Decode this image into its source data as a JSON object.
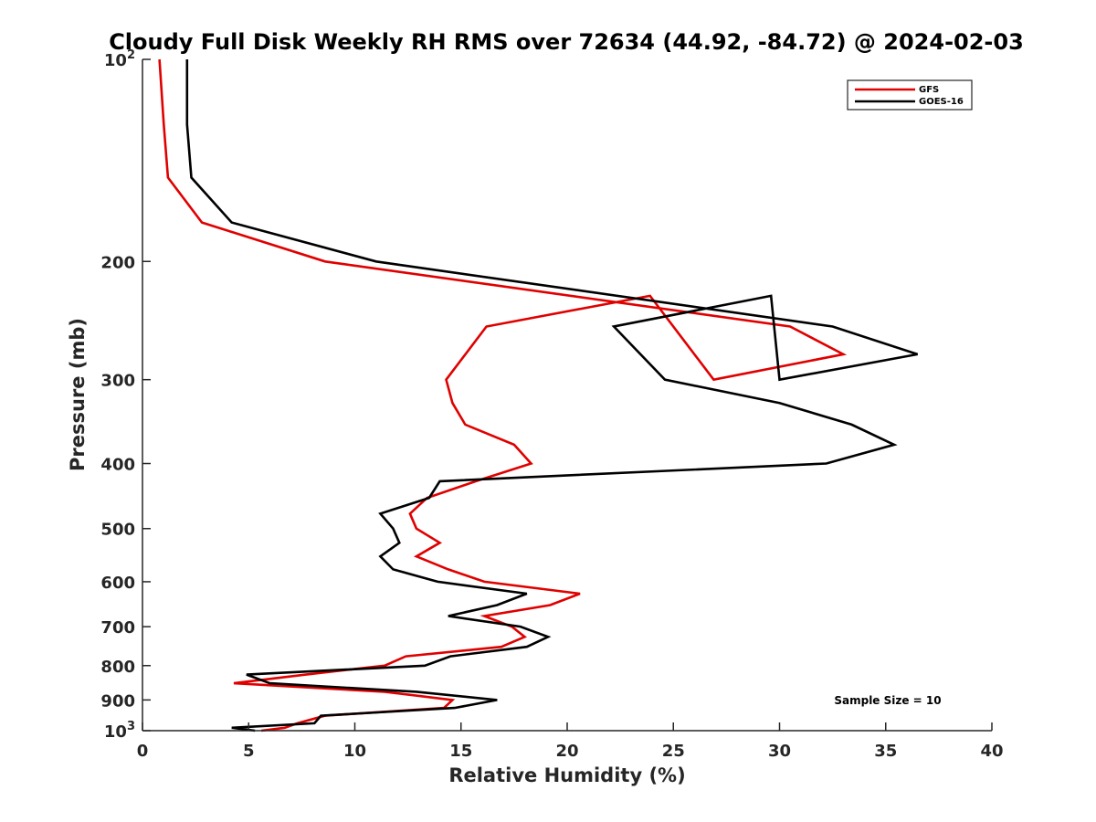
{
  "chart_data": {
    "type": "line",
    "title": "Cloudy Full Disk Weekly RH RMS over 72634 (44.92, -84.72) @ 2024-02-03",
    "xlabel": "Relative Humidity (%)",
    "ylabel": "Pressure (mb)",
    "xlim": [
      0,
      40
    ],
    "ylim": [
      100,
      1000
    ],
    "y_scale": "log",
    "y_reversed": true,
    "x_ticks": [
      {
        "value": 0,
        "label": "0"
      },
      {
        "value": 5,
        "label": "5"
      },
      {
        "value": 10,
        "label": "10"
      },
      {
        "value": 15,
        "label": "15"
      },
      {
        "value": 20,
        "label": "20"
      },
      {
        "value": 25,
        "label": "25"
      },
      {
        "value": 30,
        "label": "30"
      },
      {
        "value": 35,
        "label": "35"
      },
      {
        "value": 40,
        "label": "40"
      }
    ],
    "y_ticks": [
      {
        "value": 100,
        "label": "10",
        "sup": "2"
      },
      {
        "value": 200,
        "label": "200",
        "sup": ""
      },
      {
        "value": 300,
        "label": "300",
        "sup": ""
      },
      {
        "value": 400,
        "label": "400",
        "sup": ""
      },
      {
        "value": 500,
        "label": "500",
        "sup": ""
      },
      {
        "value": 600,
        "label": "600",
        "sup": ""
      },
      {
        "value": 700,
        "label": "700",
        "sup": ""
      },
      {
        "value": 800,
        "label": "800",
        "sup": ""
      },
      {
        "value": 900,
        "label": "900",
        "sup": ""
      },
      {
        "value": 1000,
        "label": "10",
        "sup": "3"
      }
    ],
    "grid": false,
    "legend_position": "top-right",
    "annotation": "Sample Size = 10",
    "series": [
      {
        "name": "GFS",
        "color": "#e00000",
        "points": [
          {
            "rh": 0.8,
            "p": 100
          },
          {
            "rh": 1.0,
            "p": 125
          },
          {
            "rh": 1.2,
            "p": 150
          },
          {
            "rh": 2.8,
            "p": 175
          },
          {
            "rh": 8.6,
            "p": 200
          },
          {
            "rh": 30.5,
            "p": 250
          },
          {
            "rh": 33.0,
            "p": 275
          },
          {
            "rh": 26.9,
            "p": 300
          },
          {
            "rh": 23.9,
            "p": 225
          },
          {
            "rh": 16.2,
            "p": 250
          },
          {
            "rh": 14.3,
            "p": 300
          },
          {
            "rh": 14.6,
            "p": 325
          },
          {
            "rh": 15.2,
            "p": 350
          },
          {
            "rh": 17.5,
            "p": 375
          },
          {
            "rh": 18.3,
            "p": 400
          },
          {
            "rh": 15.7,
            "p": 425
          },
          {
            "rh": 13.4,
            "p": 450
          },
          {
            "rh": 12.6,
            "p": 475
          },
          {
            "rh": 12.9,
            "p": 500
          },
          {
            "rh": 14.0,
            "p": 525
          },
          {
            "rh": 12.9,
            "p": 550
          },
          {
            "rh": 14.4,
            "p": 575
          },
          {
            "rh": 16.1,
            "p": 600
          },
          {
            "rh": 20.6,
            "p": 625
          },
          {
            "rh": 19.2,
            "p": 650
          },
          {
            "rh": 16.1,
            "p": 675
          },
          {
            "rh": 17.4,
            "p": 700
          },
          {
            "rh": 18.0,
            "p": 725
          },
          {
            "rh": 16.9,
            "p": 750
          },
          {
            "rh": 12.4,
            "p": 775
          },
          {
            "rh": 11.4,
            "p": 800
          },
          {
            "rh": 7.7,
            "p": 825
          },
          {
            "rh": 4.3,
            "p": 850
          },
          {
            "rh": 11.4,
            "p": 875
          },
          {
            "rh": 14.6,
            "p": 900
          },
          {
            "rh": 14.2,
            "p": 925
          },
          {
            "rh": 8.6,
            "p": 950
          },
          {
            "rh": 7.3,
            "p": 975
          },
          {
            "rh": 6.7,
            "p": 990
          },
          {
            "rh": 5.6,
            "p": 1000
          }
        ]
      },
      {
        "name": "GOES-16",
        "color": "#000000",
        "points": [
          {
            "rh": 2.1,
            "p": 100
          },
          {
            "rh": 2.1,
            "p": 125
          },
          {
            "rh": 2.3,
            "p": 150
          },
          {
            "rh": 4.2,
            "p": 175
          },
          {
            "rh": 11.0,
            "p": 200
          },
          {
            "rh": 32.5,
            "p": 250
          },
          {
            "rh": 36.5,
            "p": 275
          },
          {
            "rh": 30.0,
            "p": 300
          },
          {
            "rh": 29.6,
            "p": 225
          },
          {
            "rh": 22.2,
            "p": 250
          },
          {
            "rh": 24.6,
            "p": 300
          },
          {
            "rh": 30.0,
            "p": 325
          },
          {
            "rh": 33.4,
            "p": 350
          },
          {
            "rh": 35.4,
            "p": 375
          },
          {
            "rh": 32.2,
            "p": 400
          },
          {
            "rh": 14.0,
            "p": 425
          },
          {
            "rh": 13.5,
            "p": 450
          },
          {
            "rh": 11.2,
            "p": 475
          },
          {
            "rh": 11.8,
            "p": 500
          },
          {
            "rh": 12.1,
            "p": 525
          },
          {
            "rh": 11.2,
            "p": 550
          },
          {
            "rh": 11.8,
            "p": 575
          },
          {
            "rh": 13.9,
            "p": 600
          },
          {
            "rh": 18.1,
            "p": 625
          },
          {
            "rh": 16.7,
            "p": 650
          },
          {
            "rh": 14.4,
            "p": 675
          },
          {
            "rh": 17.8,
            "p": 700
          },
          {
            "rh": 19.1,
            "p": 725
          },
          {
            "rh": 18.1,
            "p": 750
          },
          {
            "rh": 14.5,
            "p": 775
          },
          {
            "rh": 13.3,
            "p": 800
          },
          {
            "rh": 4.9,
            "p": 825
          },
          {
            "rh": 6.0,
            "p": 850
          },
          {
            "rh": 12.9,
            "p": 875
          },
          {
            "rh": 16.7,
            "p": 900
          },
          {
            "rh": 14.7,
            "p": 925
          },
          {
            "rh": 8.4,
            "p": 950
          },
          {
            "rh": 8.1,
            "p": 975
          },
          {
            "rh": 4.2,
            "p": 990
          },
          {
            "rh": 5.3,
            "p": 1000
          }
        ]
      }
    ]
  }
}
